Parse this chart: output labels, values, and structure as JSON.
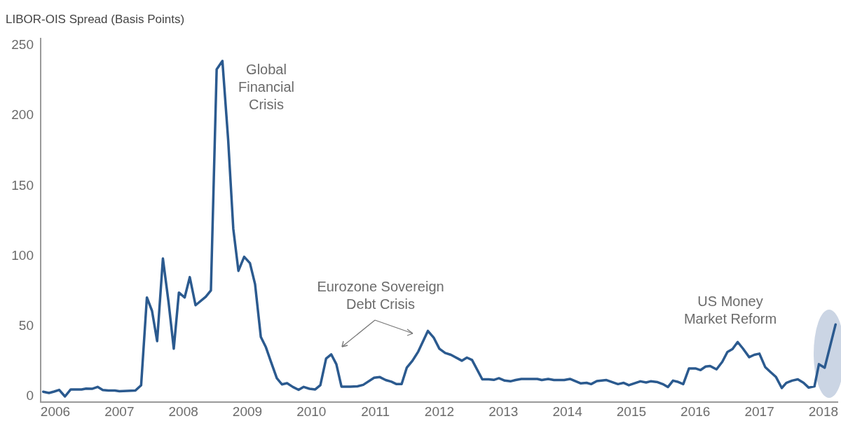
{
  "chart_data": {
    "type": "line",
    "ylabel": "LIBOR-OIS Spread (Basis Points)",
    "xlim": [
      2005.77,
      2018.22
    ],
    "xticks": [
      2006,
      2007,
      2008,
      2009,
      2010,
      2011,
      2012,
      2013,
      2014,
      2015,
      2016,
      2017,
      2018
    ],
    "ylim": [
      -4,
      255
    ],
    "yticks": [
      0,
      50,
      100,
      150,
      200,
      250
    ],
    "grid": false,
    "legend": false,
    "marker": "none",
    "line_style": "solid",
    "annotations": [
      "Global\nFinancial\nCrisis",
      "Eurozone Sovereign\nDebt Crisis",
      "US Money\nMarket Reform"
    ],
    "series": [
      {
        "color": "#2b5a8f",
        "x": [
          2005.81,
          2005.9,
          2005.98,
          2006.06,
          2006.15,
          2006.24,
          2006.41,
          2006.48,
          2006.58,
          2006.66,
          2006.74,
          2006.83,
          2006.93,
          2007.0,
          2007.25,
          2007.34,
          2007.43,
          2007.51,
          2007.59,
          2007.68,
          2007.77,
          2007.85,
          2007.93,
          2008.02,
          2008.1,
          2008.19,
          2008.35,
          2008.43,
          2008.52,
          2008.61,
          2008.7,
          2008.78,
          2008.86,
          2008.95,
          2009.04,
          2009.12,
          2009.21,
          2009.29,
          2009.37,
          2009.46,
          2009.54,
          2009.62,
          2009.71,
          2009.8,
          2009.88,
          2009.97,
          2010.06,
          2010.14,
          2010.23,
          2010.31,
          2010.39,
          2010.47,
          2010.61,
          2010.72,
          2010.81,
          2010.98,
          2011.07,
          2011.16,
          2011.25,
          2011.33,
          2011.41,
          2011.49,
          2011.58,
          2011.67,
          2011.82,
          2011.91,
          2012.0,
          2012.09,
          2012.18,
          2012.35,
          2012.43,
          2012.51,
          2012.67,
          2012.77,
          2012.85,
          2012.93,
          2013.02,
          2013.11,
          2013.19,
          2013.28,
          2013.53,
          2013.6,
          2013.7,
          2013.79,
          2013.95,
          2014.04,
          2014.21,
          2014.3,
          2014.37,
          2014.46,
          2014.61,
          2014.79,
          2014.88,
          2014.96,
          2015.14,
          2015.23,
          2015.3,
          2015.41,
          2015.49,
          2015.57,
          2015.65,
          2015.72,
          2015.81,
          2015.9,
          2016.0,
          2016.08,
          2016.16,
          2016.23,
          2016.33,
          2016.42,
          2016.5,
          2016.58,
          2016.66,
          2016.74,
          2016.84,
          2016.92,
          2017.0,
          2017.09,
          2017.16,
          2017.26,
          2017.35,
          2017.42,
          2017.51,
          2017.6,
          2017.69,
          2017.77,
          2017.86,
          2017.93,
          2018.02,
          2018.19
        ],
        "values": [
          3.4,
          2.5,
          3.5,
          4.7,
          0,
          5,
          5,
          5.6,
          5.5,
          6.8,
          4.6,
          4.2,
          4.2,
          3.7,
          4.2,
          8,
          70.5,
          61,
          39.4,
          98.3,
          66.6,
          34,
          74,
          70.5,
          85,
          65,
          71,
          75.5,
          233,
          239,
          182.7,
          119.4,
          89.5,
          99.5,
          95,
          80,
          42.4,
          35,
          24.5,
          13,
          8.6,
          9.5,
          6.8,
          4.7,
          6.8,
          5.5,
          5,
          8,
          27,
          30,
          23,
          7,
          7,
          7.2,
          8.3,
          13.3,
          13.8,
          11.7,
          10.5,
          8.8,
          8.8,
          20.5,
          25.5,
          32,
          46.7,
          42,
          34,
          31,
          29.7,
          25.5,
          27.7,
          26,
          12.2,
          12.2,
          11.8,
          13,
          11.3,
          10.8,
          11.7,
          12.5,
          12.5,
          11.7,
          12.5,
          11.7,
          11.7,
          12.5,
          9.3,
          9.7,
          8.8,
          11,
          11.7,
          8.8,
          9.7,
          8,
          10.8,
          10,
          10.8,
          10.2,
          8.8,
          6.7,
          11.3,
          10.5,
          8.8,
          20,
          20,
          18.8,
          21.3,
          21.7,
          19.3,
          24.7,
          31.7,
          33.8,
          38.8,
          34.3,
          28,
          29.7,
          30.5,
          21,
          18,
          13.8,
          6,
          9.7,
          11.3,
          12.2,
          9.7,
          6.3,
          7.2,
          23,
          20.5,
          51.3
        ]
      }
    ]
  }
}
